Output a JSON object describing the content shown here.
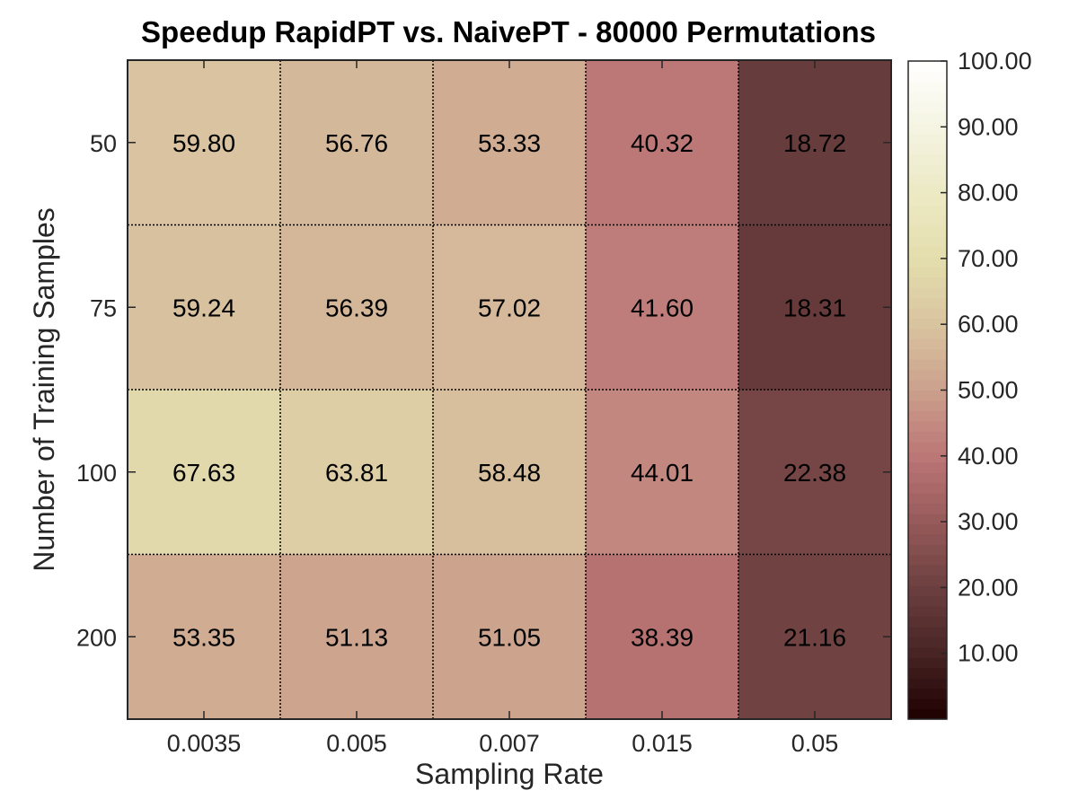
{
  "chart_data": {
    "type": "heatmap",
    "title": "Speedup RapidPT vs. NaivePT - 80000 Permutations",
    "xlabel": "Sampling Rate",
    "ylabel": "Number of Training Samples",
    "x_categories": [
      "0.0035",
      "0.005",
      "0.007",
      "0.015",
      "0.05"
    ],
    "y_categories": [
      "50",
      "75",
      "100",
      "200"
    ],
    "values": [
      [
        59.8,
        56.76,
        53.33,
        40.32,
        18.72
      ],
      [
        59.24,
        56.39,
        57.02,
        41.6,
        18.31
      ],
      [
        67.63,
        63.81,
        58.48,
        44.01,
        22.38
      ],
      [
        53.35,
        51.13,
        51.05,
        38.39,
        21.16
      ]
    ],
    "value_labels": [
      [
        "59.80",
        "56.76",
        "53.33",
        "40.32",
        "18.72"
      ],
      [
        "59.24",
        "56.39",
        "57.02",
        "41.60",
        "18.31"
      ],
      [
        "67.63",
        "63.81",
        "58.48",
        "44.01",
        "22.38"
      ],
      [
        "53.35",
        "51.13",
        "51.05",
        "38.39",
        "21.16"
      ]
    ],
    "colorbar": {
      "range": [
        0,
        100
      ],
      "ticks": [
        10,
        20,
        30,
        40,
        50,
        60,
        70,
        80,
        90,
        100
      ],
      "tick_labels": [
        "10.00",
        "20.00",
        "30.00",
        "40.00",
        "50.00",
        "60.00",
        "70.00",
        "80.00",
        "90.00",
        "100.00"
      ],
      "colormap": "pink"
    },
    "grid": true
  }
}
